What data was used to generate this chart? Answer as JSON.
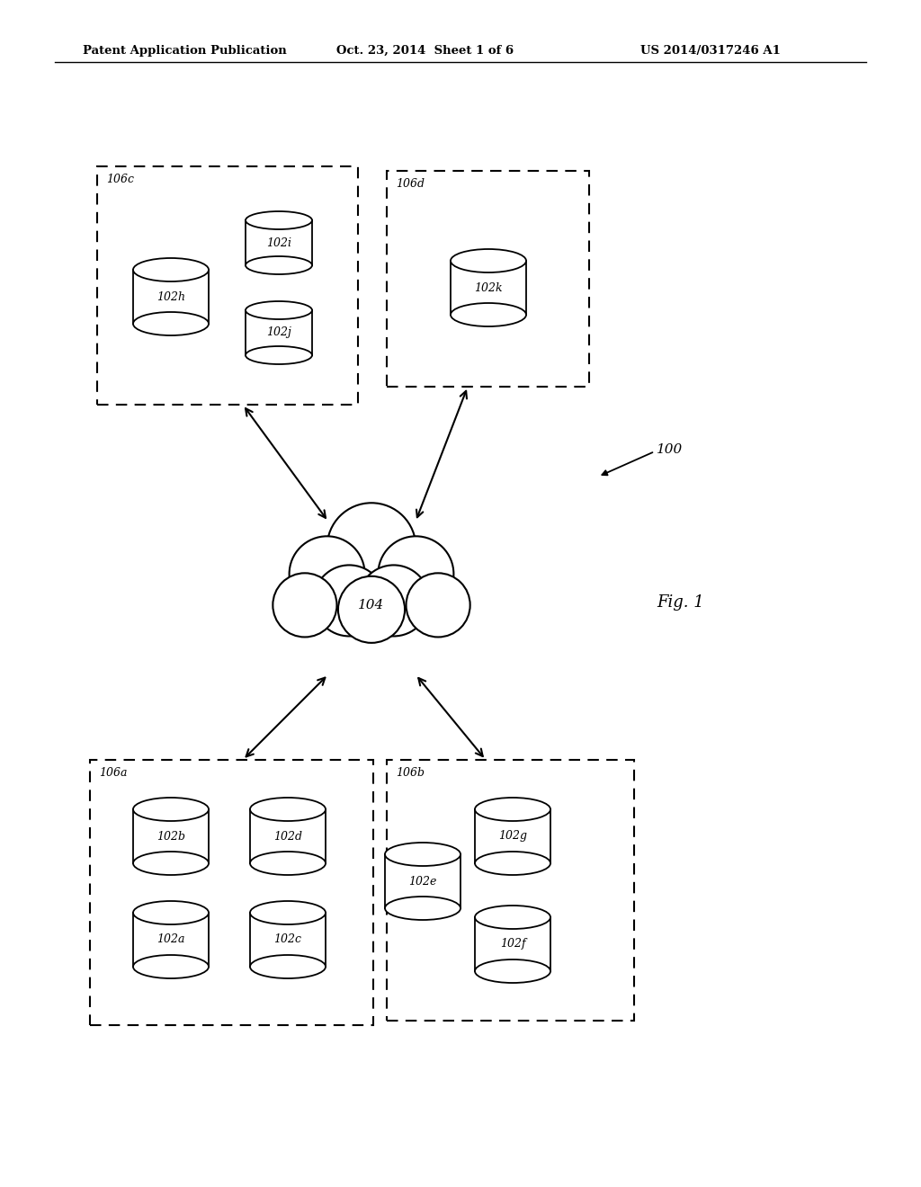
{
  "title_left": "Patent Application Publication",
  "title_mid": "Oct. 23, 2014  Sheet 1 of 6",
  "title_right": "US 2014/0317246 A1",
  "fig_label": "Fig. 1",
  "ref_100": "100",
  "cloud_label": "104",
  "bg_color": "#ffffff"
}
